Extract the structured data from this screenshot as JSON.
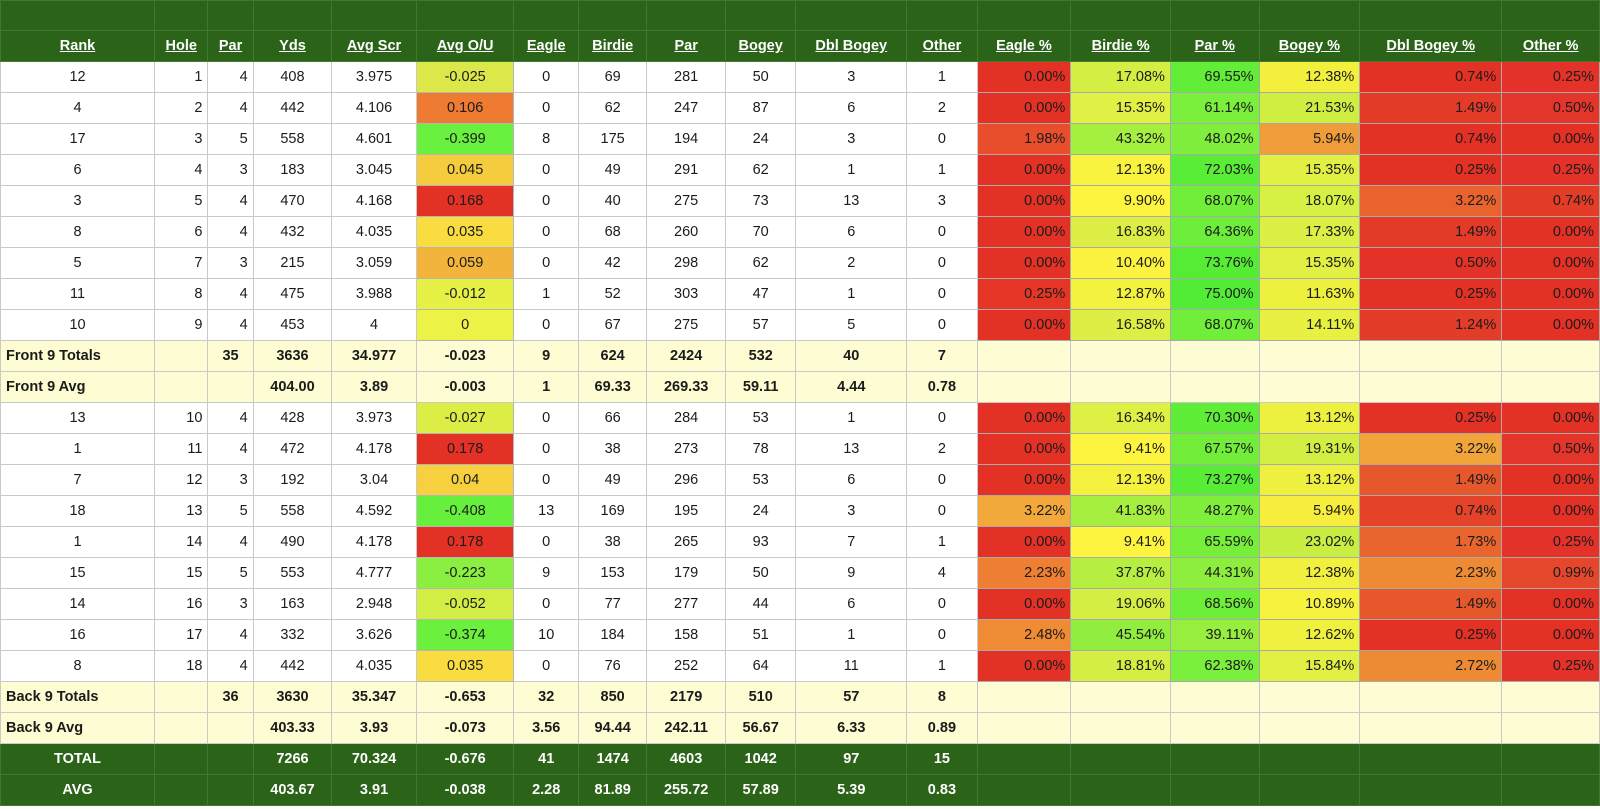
{
  "headers": [
    "Rank",
    "Hole",
    "Par",
    "Yds",
    "Avg Scr",
    "Avg O/U",
    "Eagle",
    "Birdie",
    "Par",
    "Bogey",
    "Dbl Bogey",
    "Other",
    "Eagle %",
    "Birdie %",
    "Par %",
    "Bogey %",
    "Dbl Bogey %",
    "Other %"
  ],
  "front": [
    {
      "cells": [
        "12",
        "1",
        "4",
        "408",
        "3.975",
        "-0.025",
        "0",
        "69",
        "281",
        "50",
        "3",
        "1",
        "0.00%",
        "17.08%",
        "69.55%",
        "12.38%",
        "0.74%",
        "0.25%"
      ],
      "colors": [
        "#dce84a",
        "#e33125",
        "#d4ee44",
        "#62ed38",
        "#f2f03d",
        "#e33125",
        "#e4322a"
      ]
    },
    {
      "cells": [
        "4",
        "2",
        "4",
        "442",
        "4.106",
        "0.106",
        "0",
        "62",
        "247",
        "87",
        "6",
        "2",
        "0.00%",
        "15.35%",
        "61.14%",
        "21.53%",
        "1.49%",
        "0.50%"
      ],
      "colors": [
        "#ef7a32",
        "#e33125",
        "#e1f044",
        "#7aef3c",
        "#d0ee42",
        "#e43a28",
        "#e4352a"
      ]
    },
    {
      "cells": [
        "17",
        "3",
        "5",
        "558",
        "4.601",
        "-0.399",
        "8",
        "175",
        "194",
        "24",
        "3",
        "0",
        "1.98%",
        "43.32%",
        "48.02%",
        "5.94%",
        "0.74%",
        "0.00%"
      ],
      "colors": [
        "#6af03e",
        "#e84e2c",
        "#a4ef40",
        "#7fee3c",
        "#ef9c3a",
        "#e33125",
        "#e33125"
      ]
    },
    {
      "cells": [
        "6",
        "4",
        "3",
        "183",
        "3.045",
        "0.045",
        "0",
        "49",
        "291",
        "62",
        "1",
        "1",
        "0.00%",
        "12.13%",
        "72.03%",
        "15.35%",
        "0.25%",
        "0.25%"
      ],
      "colors": [
        "#f5cc3e",
        "#e33125",
        "#f7f33e",
        "#5aed37",
        "#e2f044",
        "#e33125",
        "#e4322a"
      ]
    },
    {
      "cells": [
        "3",
        "5",
        "4",
        "470",
        "4.168",
        "0.168",
        "0",
        "40",
        "275",
        "73",
        "13",
        "3",
        "0.00%",
        "9.90%",
        "68.07%",
        "18.07%",
        "3.22%",
        "0.74%"
      ],
      "colors": [
        "#e33125",
        "#e33125",
        "#fcf43f",
        "#70ee39",
        "#d8ef44",
        "#e8632e",
        "#e33d28"
      ]
    },
    {
      "cells": [
        "8",
        "6",
        "4",
        "432",
        "4.035",
        "0.035",
        "0",
        "68",
        "260",
        "70",
        "6",
        "0",
        "0.00%",
        "16.83%",
        "64.36%",
        "17.33%",
        "1.49%",
        "0.00%"
      ],
      "colors": [
        "#f8dc40",
        "#e33125",
        "#dcee44",
        "#6cee3a",
        "#dcef44",
        "#e43a28",
        "#e33125"
      ]
    },
    {
      "cells": [
        "5",
        "7",
        "3",
        "215",
        "3.059",
        "0.059",
        "0",
        "42",
        "298",
        "62",
        "2",
        "0",
        "0.00%",
        "10.40%",
        "73.76%",
        "15.35%",
        "0.50%",
        "0.00%"
      ],
      "colors": [
        "#f2b43a",
        "#e33125",
        "#fbf33f",
        "#56ec36",
        "#e2f044",
        "#e33328",
        "#e33125"
      ]
    },
    {
      "cells": [
        "11",
        "8",
        "4",
        "475",
        "3.988",
        "-0.012",
        "1",
        "52",
        "303",
        "47",
        "1",
        "0",
        "0.25%",
        "12.87%",
        "75.00%",
        "11.63%",
        "0.25%",
        "0.00%"
      ],
      "colors": [
        "#e6f045",
        "#e43527",
        "#f3f23e",
        "#52ec36",
        "#eef03e",
        "#e33125",
        "#e33125"
      ]
    },
    {
      "cells": [
        "10",
        "9",
        "4",
        "453",
        "4",
        "0",
        "0",
        "67",
        "275",
        "57",
        "5",
        "0",
        "0.00%",
        "16.58%",
        "68.07%",
        "14.11%",
        "1.24%",
        "0.00%"
      ],
      "colors": [
        "#edf247",
        "#e33125",
        "#ddee44",
        "#70ee39",
        "#e8f042",
        "#e33c28",
        "#e33125"
      ]
    }
  ],
  "front_totals": {
    "cells": [
      "Front 9 Totals",
      "",
      "35",
      "3636",
      "34.977",
      "-0.023",
      "9",
      "624",
      "2424",
      "532",
      "40",
      "7"
    ]
  },
  "front_avg": {
    "cells": [
      "Front 9 Avg",
      "",
      "",
      "404.00",
      "3.89",
      "-0.003",
      "1",
      "69.33",
      "269.33",
      "59.11",
      "4.44",
      "0.78"
    ]
  },
  "back": [
    {
      "cells": [
        "13",
        "10",
        "4",
        "428",
        "3.973",
        "-0.027",
        "0",
        "66",
        "284",
        "53",
        "1",
        "0",
        "0.00%",
        "16.34%",
        "70.30%",
        "13.12%",
        "0.25%",
        "0.00%"
      ],
      "colors": [
        "#dcee45",
        "#e33125",
        "#def044",
        "#60ed38",
        "#eef03f",
        "#e33125",
        "#e33125"
      ]
    },
    {
      "cells": [
        "1",
        "11",
        "4",
        "472",
        "4.178",
        "0.178",
        "0",
        "38",
        "273",
        "78",
        "13",
        "2",
        "0.00%",
        "9.41%",
        "67.57%",
        "19.31%",
        "3.22%",
        "0.50%"
      ],
      "colors": [
        "#e33125",
        "#e33125",
        "#fdf43f",
        "#72ee3a",
        "#d2ee43",
        "#f0a43a",
        "#e4352a"
      ]
    },
    {
      "cells": [
        "7",
        "12",
        "3",
        "192",
        "3.04",
        "0.04",
        "0",
        "49",
        "296",
        "53",
        "6",
        "0",
        "0.00%",
        "12.13%",
        "73.27%",
        "13.12%",
        "1.49%",
        "0.00%"
      ],
      "colors": [
        "#f6d03e",
        "#e33125",
        "#f4f23e",
        "#58ec37",
        "#eef03f",
        "#e7572c",
        "#e33125"
      ]
    },
    {
      "cells": [
        "18",
        "13",
        "5",
        "558",
        "4.592",
        "-0.408",
        "13",
        "169",
        "195",
        "24",
        "3",
        "0",
        "3.22%",
        "41.83%",
        "48.27%",
        "5.94%",
        "0.74%",
        "0.00%"
      ],
      "colors": [
        "#66ef3c",
        "#f3a83b",
        "#a6ef40",
        "#80ef3c",
        "#f6ed3d",
        "#e4432a",
        "#e33125"
      ]
    },
    {
      "cells": [
        "1",
        "14",
        "4",
        "490",
        "4.178",
        "0.178",
        "0",
        "38",
        "265",
        "93",
        "7",
        "1",
        "0.00%",
        "9.41%",
        "65.59%",
        "23.02%",
        "1.73%",
        "0.25%"
      ],
      "colors": [
        "#e33125",
        "#e33125",
        "#fdf43f",
        "#76ee3a",
        "#c8ee42",
        "#e9652e",
        "#e4322a"
      ]
    },
    {
      "cells": [
        "15",
        "15",
        "5",
        "553",
        "4.777",
        "-0.223",
        "9",
        "153",
        "179",
        "50",
        "9",
        "4",
        "2.23%",
        "37.87%",
        "44.31%",
        "12.38%",
        "2.23%",
        "0.99%"
      ],
      "colors": [
        "#8aef40",
        "#ef7f33",
        "#b6ef42",
        "#8eee3e",
        "#f2f03e",
        "#ee8a34",
        "#e4472c"
      ]
    },
    {
      "cells": [
        "14",
        "16",
        "3",
        "163",
        "2.948",
        "-0.052",
        "0",
        "77",
        "277",
        "44",
        "6",
        "0",
        "0.00%",
        "19.06%",
        "68.56%",
        "10.89%",
        "1.49%",
        "0.00%"
      ],
      "colors": [
        "#d2ee45",
        "#e33125",
        "#d4ee43",
        "#6eee39",
        "#f6f23e",
        "#e7572c",
        "#e33125"
      ]
    },
    {
      "cells": [
        "16",
        "17",
        "4",
        "332",
        "3.626",
        "-0.374",
        "10",
        "184",
        "158",
        "51",
        "1",
        "0",
        "2.48%",
        "45.54%",
        "39.11%",
        "12.62%",
        "0.25%",
        "0.00%"
      ],
      "colors": [
        "#6cf03e",
        "#ef8a35",
        "#92ee3e",
        "#98ee3f",
        "#f0f03e",
        "#e33125",
        "#e33125"
      ]
    },
    {
      "cells": [
        "8",
        "18",
        "4",
        "442",
        "4.035",
        "0.035",
        "0",
        "76",
        "252",
        "64",
        "11",
        "1",
        "0.00%",
        "18.81%",
        "62.38%",
        "15.84%",
        "2.72%",
        "0.25%"
      ],
      "colors": [
        "#f8dc40",
        "#e33125",
        "#d6ee43",
        "#7aef3c",
        "#e2f044",
        "#ef8a34",
        "#e4322a"
      ]
    }
  ],
  "back_totals": {
    "cells": [
      "Back 9 Totals",
      "",
      "36",
      "3630",
      "35.347",
      "-0.653",
      "32",
      "850",
      "2179",
      "510",
      "57",
      "8"
    ]
  },
  "back_avg": {
    "cells": [
      "Back 9 Avg",
      "",
      "",
      "403.33",
      "3.93",
      "-0.073",
      "3.56",
      "94.44",
      "242.11",
      "56.67",
      "6.33",
      "0.89"
    ]
  },
  "total": {
    "cells": [
      "TOTAL",
      "",
      "",
      "7266",
      "70.324",
      "-0.676",
      "41",
      "1474",
      "4603",
      "1042",
      "97",
      "15"
    ]
  },
  "avg": {
    "cells": [
      "AVG",
      "",
      "",
      "403.67",
      "3.91",
      "-0.038",
      "2.28",
      "81.89",
      "255.72",
      "57.89",
      "5.39",
      "0.83"
    ]
  }
}
